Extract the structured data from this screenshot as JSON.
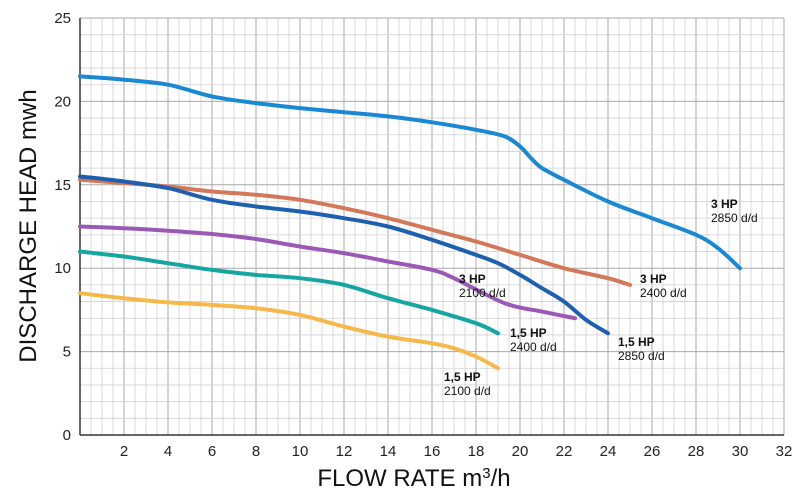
{
  "chart_data": {
    "type": "line",
    "title": "",
    "xlabel": "FLOW RATE m³/h",
    "ylabel": "DISCHARGE HEAD mwh",
    "xlim": [
      0,
      32
    ],
    "ylim": [
      0,
      25
    ],
    "x_ticks": [
      2,
      4,
      6,
      8,
      10,
      12,
      14,
      16,
      18,
      20,
      22,
      24,
      26,
      28,
      30,
      32
    ],
    "y_ticks": [
      0,
      5,
      10,
      15,
      20,
      25
    ],
    "grid": true,
    "series": [
      {
        "name": "3 HP 2850 d/d",
        "hp": "3 HP",
        "rpm": "2850 d/d",
        "color": "#1a88d2",
        "points": [
          [
            0,
            21.5
          ],
          [
            2,
            21.3
          ],
          [
            4,
            21.0
          ],
          [
            6,
            20.3
          ],
          [
            8,
            19.9
          ],
          [
            10,
            19.6
          ],
          [
            12,
            19.35
          ],
          [
            14,
            19.1
          ],
          [
            16,
            18.75
          ],
          [
            18,
            18.3
          ],
          [
            19.3,
            17.9
          ],
          [
            20,
            17.3
          ],
          [
            20.5,
            16.6
          ],
          [
            21,
            16.0
          ],
          [
            22,
            15.3
          ],
          [
            24,
            14.0
          ],
          [
            26,
            13.0
          ],
          [
            28,
            12.0
          ],
          [
            29,
            11.2
          ],
          [
            30,
            10.0
          ]
        ]
      },
      {
        "name": "3 HP 2400 d/d",
        "hp": "3 HP",
        "rpm": "2400 d/d",
        "color": "#d4785a",
        "points": [
          [
            0,
            15.3
          ],
          [
            2,
            15.1
          ],
          [
            4,
            14.9
          ],
          [
            6,
            14.6
          ],
          [
            8,
            14.4
          ],
          [
            10,
            14.1
          ],
          [
            12,
            13.6
          ],
          [
            14,
            13.0
          ],
          [
            16,
            12.3
          ],
          [
            18,
            11.6
          ],
          [
            20,
            10.8
          ],
          [
            22,
            10.0
          ],
          [
            24,
            9.4
          ],
          [
            25,
            9.0
          ]
        ]
      },
      {
        "name": "1,5 HP 2850 d/d",
        "hp": "1,5 HP",
        "rpm": "2850 d/d",
        "color": "#1e5fb0",
        "points": [
          [
            0,
            15.5
          ],
          [
            2,
            15.2
          ],
          [
            4,
            14.8
          ],
          [
            6,
            14.1
          ],
          [
            8,
            13.7
          ],
          [
            10,
            13.4
          ],
          [
            12,
            13.0
          ],
          [
            14,
            12.5
          ],
          [
            16,
            11.7
          ],
          [
            18,
            10.8
          ],
          [
            19,
            10.3
          ],
          [
            20,
            9.6
          ],
          [
            21,
            8.8
          ],
          [
            22,
            8.0
          ],
          [
            23,
            6.9
          ],
          [
            24,
            6.1
          ]
        ]
      },
      {
        "name": "3 HP 2100 d/d",
        "hp": "3 HP",
        "rpm": "2100 d/d",
        "color": "#9b59b6",
        "points": [
          [
            0,
            12.5
          ],
          [
            2,
            12.4
          ],
          [
            4,
            12.25
          ],
          [
            6,
            12.05
          ],
          [
            8,
            11.75
          ],
          [
            10,
            11.3
          ],
          [
            12,
            10.9
          ],
          [
            14,
            10.4
          ],
          [
            16,
            9.9
          ],
          [
            17,
            9.4
          ],
          [
            19.3,
            7.9
          ],
          [
            21,
            7.4
          ],
          [
            22.5,
            7.0
          ]
        ]
      },
      {
        "name": "1,5 HP 2400 d/d",
        "hp": "1,5 HP",
        "rpm": "2400 d/d",
        "color": "#16a6a1",
        "points": [
          [
            0,
            11.0
          ],
          [
            2,
            10.7
          ],
          [
            4,
            10.3
          ],
          [
            6,
            9.9
          ],
          [
            8,
            9.6
          ],
          [
            10,
            9.4
          ],
          [
            12,
            9.0
          ],
          [
            14,
            8.2
          ],
          [
            16,
            7.5
          ],
          [
            18,
            6.7
          ],
          [
            19,
            6.1
          ]
        ]
      },
      {
        "name": "1,5 HP 2100 d/d",
        "hp": "1,5 HP",
        "rpm": "2100 d/d",
        "color": "#f7b84a",
        "points": [
          [
            0,
            8.5
          ],
          [
            2,
            8.2
          ],
          [
            4,
            7.95
          ],
          [
            6,
            7.8
          ],
          [
            8,
            7.6
          ],
          [
            10,
            7.2
          ],
          [
            12,
            6.5
          ],
          [
            14,
            5.9
          ],
          [
            16,
            5.5
          ],
          [
            17,
            5.2
          ],
          [
            18,
            4.7
          ],
          [
            19,
            4.0
          ]
        ]
      }
    ]
  }
}
